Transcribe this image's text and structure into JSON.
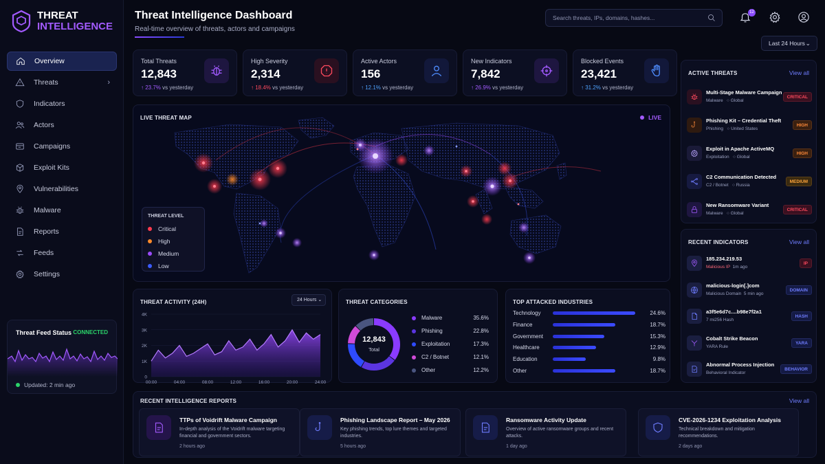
{
  "app": {
    "title_line1": "THREAT",
    "title_line2": "INTELLIGENCE"
  },
  "nav": [
    {
      "label": "Overview",
      "icon": "home-icon",
      "active": true
    },
    {
      "label": "Threats",
      "icon": "alert-icon",
      "chevron": true
    },
    {
      "label": "Indicators",
      "icon": "shield-icon"
    },
    {
      "label": "Actors",
      "icon": "users-icon"
    },
    {
      "label": "Campaigns",
      "icon": "campaign-icon"
    },
    {
      "label": "Exploit Kits",
      "icon": "kit-icon"
    },
    {
      "label": "Vulnerabilities",
      "icon": "pin-icon"
    },
    {
      "label": "Malware",
      "icon": "bug-icon"
    },
    {
      "label": "Reports",
      "icon": "report-icon"
    },
    {
      "label": "Feeds",
      "icon": "feed-icon"
    },
    {
      "label": "Settings",
      "icon": "gear-icon"
    }
  ],
  "feed_status": {
    "title": "Threat Feed Status",
    "state": "CONNECTED",
    "updated": "Updated: 2 min ago"
  },
  "header": {
    "title": "Threat Intelligence Dashboard",
    "subtitle": "Real-time overview of threats, actors and campaigns",
    "search_placeholder": "Search threats, IPs, domains, hashes...",
    "notification_count": "12",
    "range": "Last 24 Hours"
  },
  "kpis": [
    {
      "label": "Total Threats",
      "value": "12,843",
      "change": "23.7%",
      "suffix": "vs yesterday",
      "dir": "up",
      "change_color": "#a35bff",
      "icon": "bug-icon",
      "icon_color": "#a35bff",
      "icon_bg": "#1e1640"
    },
    {
      "label": "High Severity",
      "value": "2,314",
      "change": "18.4%",
      "suffix": "vs yesterday",
      "dir": "up",
      "change_color": "#ff4a5e",
      "icon": "alert-octagon-icon",
      "icon_color": "#ff4a5e",
      "icon_bg": "#2a1020"
    },
    {
      "label": "Active Actors",
      "value": "156",
      "change": "12.1%",
      "suffix": "vs yesterday",
      "dir": "up",
      "change_color": "#4fa3ff",
      "icon": "user-icon",
      "icon_color": "#4f8dff",
      "icon_bg": "#12183a"
    },
    {
      "label": "New Indicators",
      "value": "7,842",
      "change": "26.9%",
      "suffix": "vs yesterday",
      "dir": "up",
      "change_color": "#a35bff",
      "icon": "crosshair-icon",
      "icon_color": "#a35bff",
      "icon_bg": "#1e1640"
    },
    {
      "label": "Blocked Events",
      "value": "23,421",
      "change": "31.2%",
      "suffix": "vs yesterday",
      "dir": "up",
      "change_color": "#4fa3ff",
      "icon": "hand-icon",
      "icon_color": "#4f8dff",
      "icon_bg": "#12183a"
    }
  ],
  "map": {
    "title": "LIVE THREAT MAP",
    "live_label": "LIVE",
    "legend_title": "THREAT LEVEL",
    "legend": [
      {
        "label": "Critical",
        "color": "#ff3b4e"
      },
      {
        "label": "High",
        "color": "#ff8a2a"
      },
      {
        "label": "Medium",
        "color": "#9b4bff"
      },
      {
        "label": "Low",
        "color": "#3b5bff"
      }
    ]
  },
  "activity": {
    "title": "THREAT ACTIVITY (24H)",
    "range": "24 Hours",
    "y_ticks": [
      "4K",
      "3K",
      "2K",
      "1K",
      "0"
    ],
    "x_ticks": [
      "00:00",
      "04:00",
      "08:00",
      "12:00",
      "16:00",
      "20:00",
      "24:00"
    ]
  },
  "categories": {
    "title": "THREAT CATEGORIES",
    "total_value": "12,843",
    "total_label": "Total",
    "items": [
      {
        "label": "Malware",
        "pct": "35.6%",
        "color": "#8a3bff"
      },
      {
        "label": "Phishing",
        "pct": "22.8%",
        "color": "#5b35e0"
      },
      {
        "label": "Exploitation",
        "pct": "17.3%",
        "color": "#2f4bff"
      },
      {
        "label": "C2 / Botnet",
        "pct": "12.1%",
        "color": "#d04bd8"
      },
      {
        "label": "Other",
        "pct": "12.2%",
        "color": "#4a5580"
      }
    ]
  },
  "industries": {
    "title": "TOP ATTACKED INDUSTRIES",
    "items": [
      {
        "label": "Technology",
        "pct": "24.6%"
      },
      {
        "label": "Finance",
        "pct": "18.7%"
      },
      {
        "label": "Government",
        "pct": "15.3%"
      },
      {
        "label": "Healthcare",
        "pct": "12.9%"
      },
      {
        "label": "Education",
        "pct": "9.8%"
      },
      {
        "label": "Other",
        "pct": "18.7%"
      }
    ]
  },
  "active_threats": {
    "title": "ACTIVE THREATS",
    "view_all": "View all",
    "items": [
      {
        "name": "Multi-Stage Malware Campaign",
        "type": "Malware",
        "region": "Global",
        "level": "CRITICAL",
        "cls": "b-crit",
        "icon": "bug-icon",
        "color": "#ff4a5e",
        "bg": "#2a1020"
      },
      {
        "name": "Phishing Kit – Credential Theft",
        "type": "Phishing",
        "region": "United States",
        "level": "HIGH",
        "cls": "b-high",
        "icon": "hook-icon",
        "color": "#ff8a3a",
        "bg": "#2e1a10"
      },
      {
        "name": "Exploit in Apache ActiveMQ",
        "type": "Exploitation",
        "region": "Global",
        "level": "HIGH",
        "cls": "b-high",
        "icon": "gear-icon",
        "color": "#b9a4ff",
        "bg": "#1a1a38"
      },
      {
        "name": "C2 Communication Detected",
        "type": "C2 / Botnet",
        "region": "Russia",
        "level": "MEDIUM",
        "cls": "b-med",
        "icon": "network-icon",
        "color": "#6f7dff",
        "bg": "#161a40"
      },
      {
        "name": "New Ransomware Variant",
        "type": "Malware",
        "region": "Global",
        "level": "CRITICAL",
        "cls": "b-crit",
        "icon": "lock-icon",
        "color": "#a35bff",
        "bg": "#1e1640"
      }
    ]
  },
  "recent_indicators": {
    "title": "RECENT INDICATORS",
    "view_all": "View all",
    "items": [
      {
        "name": "185.234.219.53",
        "meta": "Malicious IP",
        "meta2": "1m ago",
        "tag": "IP",
        "icon": "pin-icon",
        "color": "#a35bff"
      },
      {
        "name": "malicious-login[.]com",
        "meta": "Malicious Domain",
        "meta2": "5 min ago",
        "tag": "DOMAIN",
        "icon": "globe-icon",
        "color": "#6f7dff"
      },
      {
        "name": "a3f5e6d7c....b98e7f2a1",
        "meta": "7 mi256 Hash",
        "meta2": "",
        "tag": "HASH",
        "icon": "file-icon",
        "color": "#6f7dff"
      },
      {
        "name": "Cobalt Strike Beacon",
        "meta": "YARA Rule",
        "meta2": "",
        "tag": "YARA",
        "icon": "yara-icon",
        "color": "#a35bff"
      },
      {
        "name": "Abnormal Process Injection",
        "meta": "Behavioral Indicator",
        "meta2": "",
        "tag": "BEHAVIOR",
        "icon": "check-file-icon",
        "color": "#6f7dff"
      }
    ]
  },
  "reports": {
    "title": "RECENT INTELLIGENCE REPORTS",
    "view_all": "View all",
    "items": [
      {
        "title": "TTPs of Voidrift Malware Campaign",
        "desc": "In-depth analysis of the Voidrift malware targeting financial and government sectors.",
        "time": "2 hours ago",
        "icon": "report-icon",
        "color": "#a35bff",
        "bg": "#24144a"
      },
      {
        "title": "Phishing Landscape Report – May 2026",
        "desc": "Key phishing trends, top lure themes and targeted industries.",
        "time": "5 hours ago",
        "icon": "hook-icon",
        "color": "#6f7dff",
        "bg": "#161c48"
      },
      {
        "title": "Ransomware Activity Update",
        "desc": "Overview of active ransomware groups and recent attacks.",
        "time": "1 day ago",
        "icon": "report-icon",
        "color": "#6f7dff",
        "bg": "#161c48"
      },
      {
        "title": "CVE-2026-1234 Exploitation Analysis",
        "desc": "Technical breakdown and mitigation recommendations.",
        "time": "2 days ago",
        "icon": "shield-icon",
        "color": "#6f7dff",
        "bg": "#161c48"
      }
    ]
  },
  "chart_data": [
    {
      "type": "area",
      "title": "THREAT ACTIVITY (24H)",
      "x": [
        "00:00",
        "01:00",
        "02:00",
        "03:00",
        "04:00",
        "05:00",
        "06:00",
        "07:00",
        "08:00",
        "09:00",
        "10:00",
        "11:00",
        "12:00",
        "13:00",
        "14:00",
        "15:00",
        "16:00",
        "17:00",
        "18:00",
        "19:00",
        "20:00",
        "21:00",
        "22:00",
        "23:00",
        "24:00"
      ],
      "values": [
        1000,
        1700,
        1200,
        1500,
        2000,
        1300,
        1500,
        1800,
        2100,
        1400,
        1600,
        2300,
        1700,
        1900,
        2400,
        1700,
        2100,
        2700,
        1900,
        2300,
        3000,
        2200,
        2800,
        2400,
        2700
      ],
      "ylim": [
        0,
        4000
      ],
      "y_ticks": [
        "4K",
        "3K",
        "2K",
        "1K",
        "0"
      ]
    },
    {
      "type": "pie",
      "title": "THREAT CATEGORIES",
      "categories": [
        "Malware",
        "Phishing",
        "Exploitation",
        "C2 / Botnet",
        "Other"
      ],
      "values": [
        35.6,
        22.8,
        17.3,
        12.1,
        12.2
      ],
      "center_text": "12,843"
    },
    {
      "type": "bar",
      "title": "TOP ATTACKED INDUSTRIES",
      "categories": [
        "Technology",
        "Finance",
        "Government",
        "Healthcare",
        "Education",
        "Other"
      ],
      "values": [
        24.6,
        18.7,
        15.3,
        12.9,
        9.8,
        18.7
      ]
    }
  ]
}
